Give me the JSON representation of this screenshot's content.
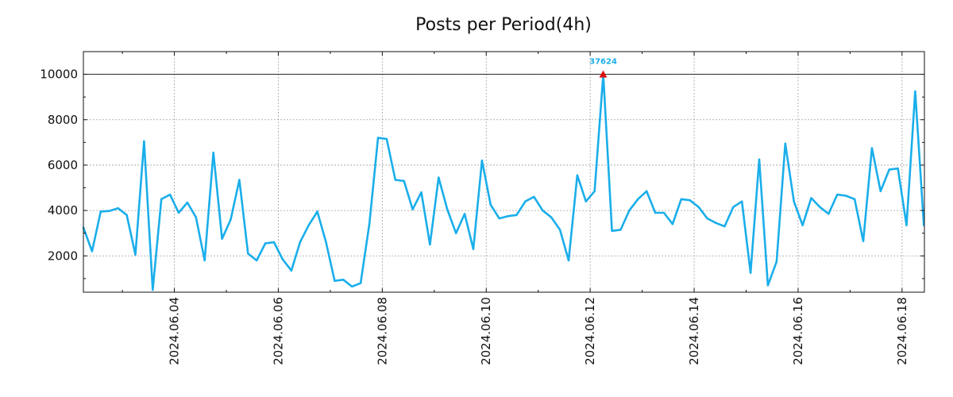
{
  "chart_data": {
    "type": "line",
    "title": "Posts per Period(4h)",
    "xlabel": "",
    "ylabel": "",
    "grid": true,
    "legend": "none",
    "x_range_days": [
      2.25,
      18.43
    ],
    "ylim": [
      400,
      11000
    ],
    "y_ticks": [
      2000,
      4000,
      6000,
      8000,
      10000
    ],
    "x_ticks": [
      {
        "day": 4,
        "label": "2024.06.04"
      },
      {
        "day": 6,
        "label": "2024.06.06"
      },
      {
        "day": 8,
        "label": "2024.06.08"
      },
      {
        "day": 10,
        "label": "2024.06.10"
      },
      {
        "day": 12,
        "label": "2024.06.12"
      },
      {
        "day": 14,
        "label": "2024.06.14"
      },
      {
        "day": 16,
        "label": "2024.06.16"
      },
      {
        "day": 18,
        "label": "2024.06.18"
      }
    ],
    "threshold": 10000,
    "peak": {
      "day": 12.25,
      "value": 10000,
      "label": "37624"
    },
    "series": [
      {
        "name": "posts",
        "color": "#1aaeea",
        "x_start_day": 2.25,
        "x_step_days": 0.1667,
        "values": [
          3250,
          2200,
          3950,
          3980,
          4100,
          3800,
          2050,
          7050,
          500,
          4500,
          4700,
          3900,
          4350,
          3700,
          1800,
          6550,
          2750,
          3600,
          5350,
          2100,
          1800,
          2550,
          2600,
          1850,
          1350,
          2600,
          3350,
          3950,
          2600,
          900,
          950,
          650,
          800,
          3400,
          7200,
          7150,
          5350,
          5300,
          4050,
          4800,
          2500,
          5450,
          4050,
          3000,
          3850,
          2300,
          6200,
          4250,
          3650,
          3750,
          3800,
          4400,
          4600,
          4000,
          3700,
          3150,
          1800,
          5550,
          4400,
          4850,
          10000,
          3100,
          3150,
          4000,
          4500,
          4850,
          3900,
          3900,
          3400,
          4500,
          4450,
          4150,
          3650,
          3450,
          3300,
          4150,
          4400,
          1250,
          6250,
          700,
          1750,
          6950,
          4400,
          3350,
          4550,
          4150,
          3850,
          4700,
          4650,
          4500,
          2650,
          6750,
          4850,
          5800,
          5850,
          3350,
          9250,
          3350
        ]
      }
    ]
  }
}
